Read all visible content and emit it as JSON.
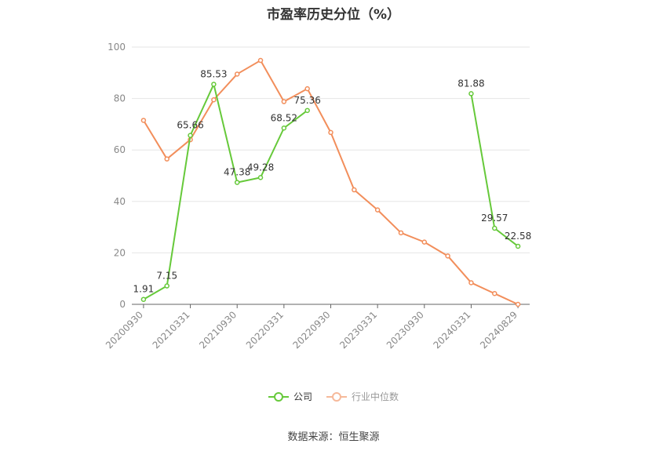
{
  "title": "市盈率历史分位（%）",
  "source": "数据来源：恒生聚源",
  "colors": {
    "company": "#66c93a",
    "industry": "#f28e5b",
    "grid": "#e6e6e6",
    "axis": "#666666"
  },
  "chart_data": {
    "type": "line",
    "title": "市盈率历史分位（%）",
    "x": [
      "20200930",
      "20201231",
      "20210331",
      "20210630",
      "20210930",
      "20211231",
      "20220331",
      "20220630",
      "20220930",
      "20221231",
      "20230331",
      "20230630",
      "20230930",
      "20231231",
      "20240331",
      "20240630",
      "20240829"
    ],
    "x_tick_labels": [
      "20200930",
      "20210331",
      "20210930",
      "20220331",
      "20220930",
      "20230331",
      "20230930",
      "20240331",
      "20240829"
    ],
    "ylim": [
      0,
      100
    ],
    "y_ticks": [
      0,
      20,
      40,
      60,
      80,
      100
    ],
    "grid": true,
    "legend_position": "bottom",
    "series": [
      {
        "name": "公司",
        "values": [
          1.91,
          7.15,
          65.66,
          85.53,
          47.38,
          49.28,
          68.52,
          75.36,
          null,
          null,
          null,
          null,
          null,
          null,
          81.88,
          29.57,
          22.58
        ],
        "labels": [
          "1.91",
          "7.15",
          "65.66",
          "85.53",
          "47.38",
          "49.28",
          "68.52",
          "75.36",
          null,
          null,
          null,
          null,
          null,
          null,
          "81.88",
          "29.57",
          "22.58"
        ]
      },
      {
        "name": "行业中位数",
        "values": [
          71.5,
          56.5,
          64,
          79.5,
          89.5,
          94.8,
          78.8,
          83.8,
          66.8,
          44.5,
          36.7,
          27.8,
          24.2,
          18.8,
          8.4,
          4.2,
          0
        ]
      }
    ]
  }
}
